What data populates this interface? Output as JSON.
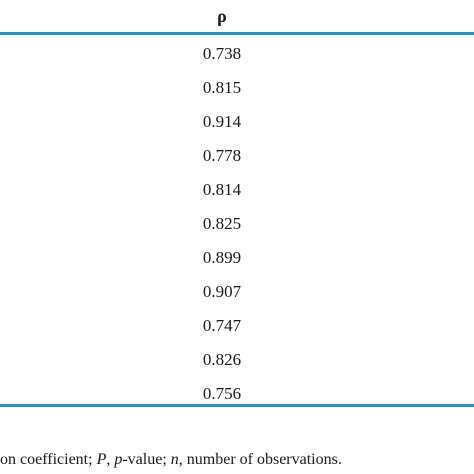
{
  "table": {
    "column_header": "ρ",
    "rows": [
      {
        "rho": "0.738"
      },
      {
        "rho": "0.815"
      },
      {
        "rho": "0.914"
      },
      {
        "rho": "0.778"
      },
      {
        "rho": "0.814"
      },
      {
        "rho": "0.825"
      },
      {
        "rho": "0.899"
      },
      {
        "rho": "0.907"
      },
      {
        "rho": "0.747"
      },
      {
        "rho": "0.826"
      },
      {
        "rho": "0.756"
      }
    ]
  },
  "footnote": {
    "part1": "on coefficient; ",
    "p_symbol": "P",
    "part2": ", ",
    "p_value_word": "p",
    "part3": "-value; ",
    "n_symbol": "n",
    "part4": ", number of observations."
  },
  "colors": {
    "rule": "#2b8ec6",
    "text": "#1a1a1a"
  }
}
